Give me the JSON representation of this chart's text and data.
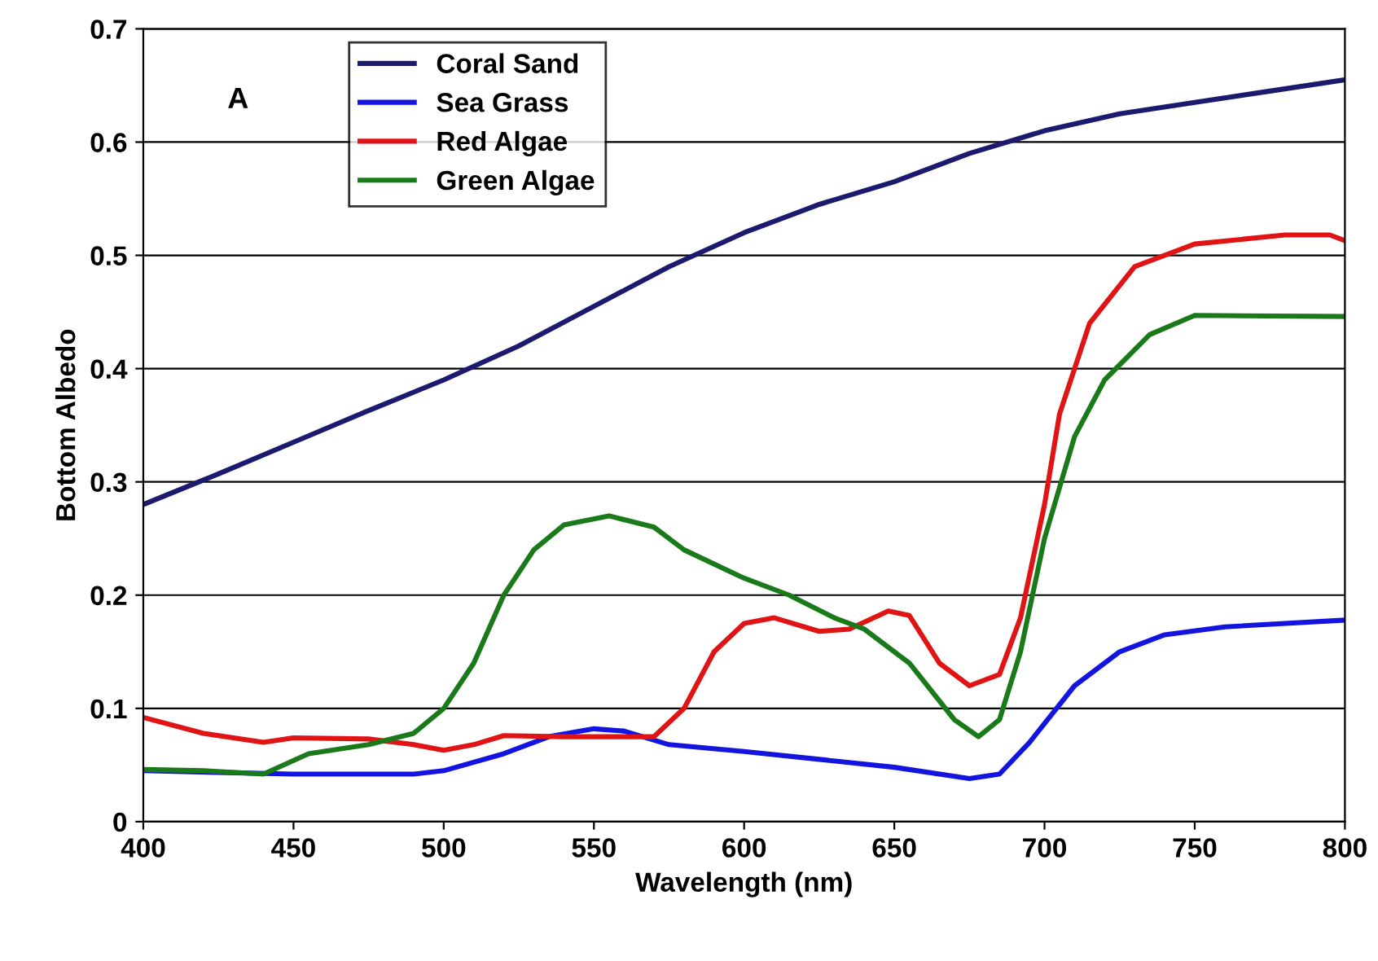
{
  "chart_data": {
    "type": "line",
    "xlabel": "Wavelength (nm)",
    "ylabel": "Bottom Albedo",
    "annotations": [
      "A"
    ],
    "xlim": [
      400,
      800
    ],
    "xticks": [
      400,
      450,
      500,
      550,
      600,
      650,
      700,
      750,
      800
    ],
    "ylim": [
      0,
      0.7
    ],
    "yticks": [
      0,
      0.1,
      0.2,
      0.3,
      0.4,
      0.5,
      0.6,
      0.7
    ],
    "grid": "y",
    "legend": "top left",
    "marker": "none",
    "line_style": "solid",
    "series": [
      {
        "name": "Coral Sand",
        "color": "#1c1a6e",
        "x": [
          400,
          425,
          450,
          475,
          500,
          525,
          550,
          575,
          600,
          625,
          650,
          675,
          700,
          725,
          750,
          775,
          800
        ],
        "values": [
          0.28,
          0.307,
          0.335,
          0.363,
          0.39,
          0.42,
          0.455,
          0.49,
          0.52,
          0.545,
          0.565,
          0.59,
          0.61,
          0.625,
          0.635,
          0.645,
          0.655
        ]
      },
      {
        "name": "Sea Grass",
        "color": "#1414e0",
        "x": [
          400,
          450,
          490,
          500,
          520,
          535,
          550,
          560,
          575,
          600,
          625,
          650,
          675,
          685,
          695,
          710,
          725,
          740,
          760,
          800
        ],
        "values": [
          0.045,
          0.042,
          0.042,
          0.045,
          0.06,
          0.075,
          0.082,
          0.08,
          0.068,
          0.062,
          0.055,
          0.048,
          0.038,
          0.042,
          0.07,
          0.12,
          0.15,
          0.165,
          0.172,
          0.178
        ]
      },
      {
        "name": "Red Algae",
        "color": "#e01414",
        "x": [
          400,
          420,
          440,
          450,
          475,
          490,
          500,
          510,
          520,
          540,
          570,
          580,
          590,
          600,
          610,
          625,
          635,
          648,
          655,
          665,
          675,
          685,
          692,
          700,
          705,
          715,
          730,
          750,
          780,
          795,
          800
        ],
        "values": [
          0.092,
          0.078,
          0.07,
          0.074,
          0.073,
          0.068,
          0.063,
          0.068,
          0.076,
          0.075,
          0.075,
          0.1,
          0.15,
          0.175,
          0.18,
          0.168,
          0.17,
          0.186,
          0.182,
          0.14,
          0.12,
          0.13,
          0.18,
          0.28,
          0.36,
          0.44,
          0.49,
          0.51,
          0.518,
          0.518,
          0.513
        ]
      },
      {
        "name": "Green Algae",
        "color": "#1a7a1a",
        "x": [
          400,
          420,
          440,
          455,
          475,
          490,
          500,
          510,
          520,
          530,
          540,
          555,
          570,
          580,
          600,
          615,
          630,
          640,
          655,
          670,
          678,
          685,
          692,
          700,
          710,
          720,
          735,
          750,
          800
        ],
        "values": [
          0.046,
          0.045,
          0.042,
          0.06,
          0.068,
          0.078,
          0.1,
          0.14,
          0.2,
          0.24,
          0.262,
          0.27,
          0.26,
          0.24,
          0.215,
          0.2,
          0.18,
          0.17,
          0.14,
          0.09,
          0.075,
          0.09,
          0.15,
          0.25,
          0.34,
          0.39,
          0.43,
          0.447,
          0.446
        ]
      }
    ]
  }
}
